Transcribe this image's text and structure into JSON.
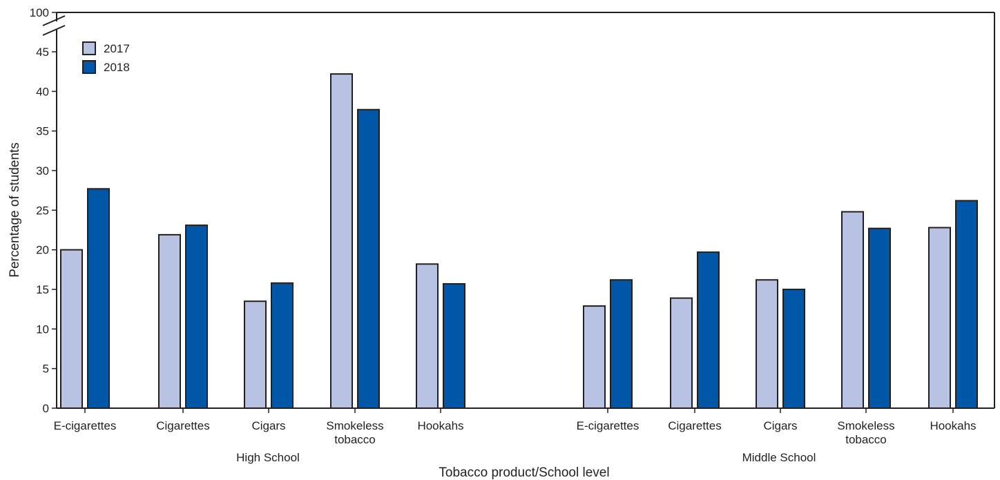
{
  "chart_data": {
    "type": "bar",
    "title": "",
    "xlabel": "Tobacco product/School level",
    "ylabel": "Percentage of students",
    "ylim": [
      0,
      45
    ],
    "axis_break_top_label": "100",
    "yticks": [
      0,
      5,
      10,
      15,
      20,
      25,
      30,
      35,
      40,
      45
    ],
    "groups": [
      {
        "label": "High School",
        "categories": [
          {
            "lines": [
              "E-cigarettes"
            ]
          },
          {
            "lines": [
              "Cigarettes"
            ]
          },
          {
            "lines": [
              "Cigars"
            ]
          },
          {
            "lines": [
              "Smokeless",
              "tobacco"
            ]
          },
          {
            "lines": [
              "Hookahs"
            ]
          }
        ]
      },
      {
        "label": "Middle School",
        "categories": [
          {
            "lines": [
              "E-cigarettes"
            ]
          },
          {
            "lines": [
              "Cigarettes"
            ]
          },
          {
            "lines": [
              "Cigars"
            ]
          },
          {
            "lines": [
              "Smokeless",
              "tobacco"
            ]
          },
          {
            "lines": [
              "Hookahs"
            ]
          }
        ]
      }
    ],
    "series": [
      {
        "name": "2017",
        "color": "#b8c2e2",
        "values": [
          20.0,
          21.9,
          13.5,
          42.2,
          18.2,
          12.9,
          13.9,
          16.2,
          24.8,
          22.8
        ]
      },
      {
        "name": "2018",
        "color": "#0057a8",
        "values": [
          27.7,
          23.1,
          15.8,
          37.7,
          15.7,
          16.2,
          19.7,
          15.0,
          22.7,
          26.2
        ]
      }
    ],
    "legend": "top-left",
    "grid": false
  }
}
